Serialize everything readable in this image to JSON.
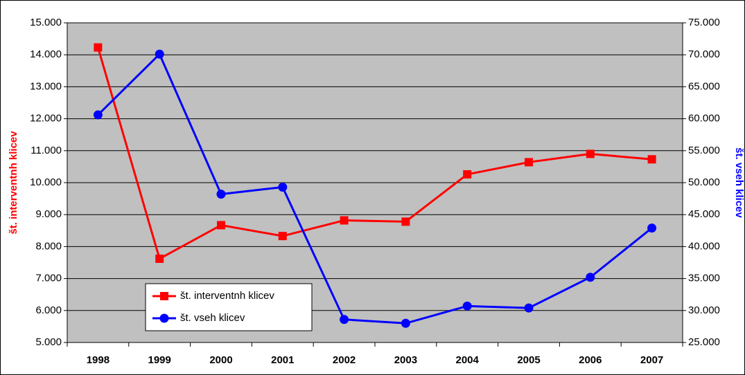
{
  "chart_data": {
    "type": "line",
    "categories": [
      "1998",
      "1999",
      "2000",
      "2001",
      "2002",
      "2003",
      "2004",
      "2005",
      "2006",
      "2007"
    ],
    "series": [
      {
        "name": "št. interventnh klicev",
        "color": "#ff0000",
        "marker": "square",
        "values": [
          14230,
          7620,
          8670,
          8330,
          8820,
          8780,
          10260,
          10640,
          10900,
          10730
        ]
      },
      {
        "name": "št. vseh klicev",
        "color": "#0000ff",
        "marker": "circle",
        "axis": "y2",
        "values": [
          60600,
          70100,
          48200,
          49300,
          28600,
          28000,
          30700,
          30400,
          35200,
          42900
        ]
      }
    ],
    "ylabel": "št. interventnh klicev",
    "ylabel_color": "#ff0000",
    "y2label": "št. vseh klicev",
    "y2label_color": "#0000ff",
    "ylim": [
      5000,
      15000
    ],
    "yticks": [
      {
        "value": 5000,
        "label": "5.000"
      },
      {
        "value": 6000,
        "label": "6.000"
      },
      {
        "value": 7000,
        "label": "7.000"
      },
      {
        "value": 8000,
        "label": "8.000"
      },
      {
        "value": 9000,
        "label": "9.000"
      },
      {
        "value": 10000,
        "label": "10.000"
      },
      {
        "value": 11000,
        "label": "11.000"
      },
      {
        "value": 12000,
        "label": "12.000"
      },
      {
        "value": 13000,
        "label": "13.000"
      },
      {
        "value": 14000,
        "label": "14.000"
      },
      {
        "value": 15000,
        "label": "15.000"
      }
    ],
    "y2lim": [
      25000,
      75000
    ],
    "y2ticks": [
      {
        "value": 25000,
        "label": "25.000"
      },
      {
        "value": 30000,
        "label": "30.000"
      },
      {
        "value": 35000,
        "label": "35.000"
      },
      {
        "value": 40000,
        "label": "40.000"
      },
      {
        "value": 45000,
        "label": "45.000"
      },
      {
        "value": 50000,
        "label": "50.000"
      },
      {
        "value": 55000,
        "label": "55.000"
      },
      {
        "value": 60000,
        "label": "60.000"
      },
      {
        "value": 65000,
        "label": "65.000"
      },
      {
        "value": 70000,
        "label": "70.000"
      },
      {
        "value": 75000,
        "label": "75.000"
      }
    ],
    "grid": true,
    "legend": "lower left",
    "plot_background": "#c0c0c0"
  }
}
